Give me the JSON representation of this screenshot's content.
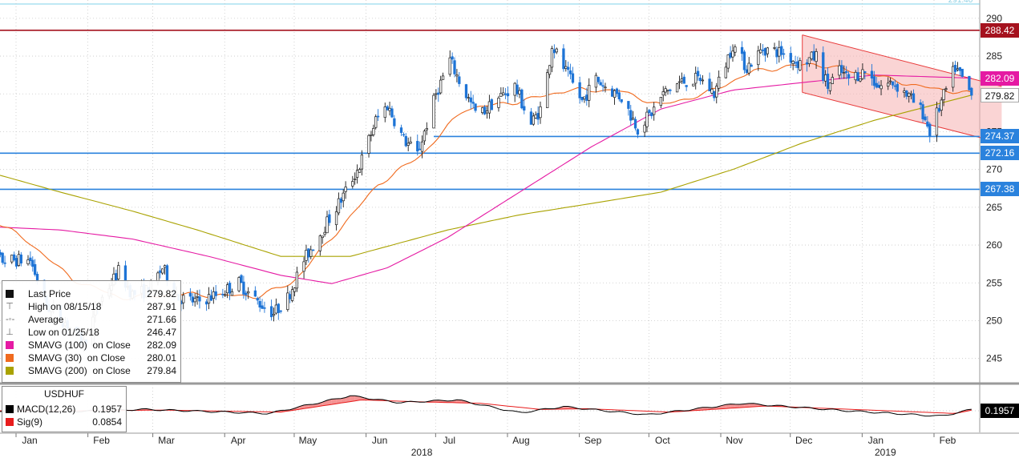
{
  "colors": {
    "background": "#ffffff",
    "candle": "#1e74d6",
    "sma30": "#f06a1e",
    "sma100": "#e51aa3",
    "sma200": "#a9a200",
    "resistance": "#a5121e",
    "support": "#2a82dd",
    "channel_fill": "#f5b0b0",
    "channel_line": "#e83a3a",
    "macd_line": "#000000",
    "signal_line": "#e81c1c",
    "macd_fill": "#f06f6f",
    "grid": "#c8c8c8",
    "tag_last": "#ffffff",
    "tag_sma100": "#e51aa3"
  },
  "chart_data": [
    {
      "type": "candlestick",
      "title": "",
      "x_labels": [
        "Jan",
        "Feb",
        "Mar",
        "Apr",
        "May",
        "Jun",
        "Jul",
        "Aug",
        "Sep",
        "Oct",
        "Nov",
        "Dec",
        "Jan",
        "Feb"
      ],
      "year_labels": [
        "2018",
        "2019"
      ],
      "y_ticks": [
        245,
        250,
        255,
        260,
        265,
        270,
        275,
        280,
        285,
        290
      ],
      "y_range": [
        242,
        292
      ],
      "grid": true,
      "scale_top_label": "291.40",
      "price_anchors": [
        {
          "date": "2017-12-11",
          "price": 262.0
        },
        {
          "date": "2017-12-20",
          "price": 258.0
        },
        {
          "date": "2018-01-02",
          "price": 258.0
        },
        {
          "date": "2018-01-09",
          "price": 252.0
        },
        {
          "date": "2018-01-17",
          "price": 249.8
        },
        {
          "date": "2018-01-25",
          "price": 247.0
        },
        {
          "date": "2018-02-01",
          "price": 252.5
        },
        {
          "date": "2018-02-09",
          "price": 256.5
        },
        {
          "date": "2018-02-15",
          "price": 253.5
        },
        {
          "date": "2018-02-22",
          "price": 254.0
        },
        {
          "date": "2018-02-28",
          "price": 257.0
        },
        {
          "date": "2018-03-07",
          "price": 253.0
        },
        {
          "date": "2018-03-15",
          "price": 252.5
        },
        {
          "date": "2018-03-24",
          "price": 253.5
        },
        {
          "date": "2018-04-02",
          "price": 255.0
        },
        {
          "date": "2018-04-10",
          "price": 252.5
        },
        {
          "date": "2018-04-17",
          "price": 251.0
        },
        {
          "date": "2018-04-23",
          "price": 253.0
        },
        {
          "date": "2018-04-30",
          "price": 258.0
        },
        {
          "date": "2018-05-08",
          "price": 262.0
        },
        {
          "date": "2018-05-16",
          "price": 266.0
        },
        {
          "date": "2018-05-24",
          "price": 270.5
        },
        {
          "date": "2018-05-31",
          "price": 276.5
        },
        {
          "date": "2018-06-05",
          "price": 278.5
        },
        {
          "date": "2018-06-12",
          "price": 274.0
        },
        {
          "date": "2018-06-18",
          "price": 272.0
        },
        {
          "date": "2018-06-26",
          "price": 280.0
        },
        {
          "date": "2018-07-02",
          "price": 284.5
        },
        {
          "date": "2018-07-07",
          "price": 281.0
        },
        {
          "date": "2018-07-14",
          "price": 277.0
        },
        {
          "date": "2018-07-23",
          "price": 279.5
        },
        {
          "date": "2018-07-30",
          "price": 281.0
        },
        {
          "date": "2018-08-06",
          "price": 276.0
        },
        {
          "date": "2018-08-11",
          "price": 278.5
        },
        {
          "date": "2018-08-15",
          "price": 286.5
        },
        {
          "date": "2018-08-20",
          "price": 283.5
        },
        {
          "date": "2018-08-28",
          "price": 279.0
        },
        {
          "date": "2018-09-03",
          "price": 282.0
        },
        {
          "date": "2018-09-07",
          "price": 281.0
        },
        {
          "date": "2018-09-14",
          "price": 279.5
        },
        {
          "date": "2018-09-21",
          "price": 275.5
        },
        {
          "date": "2018-09-27",
          "price": 277.5
        },
        {
          "date": "2018-10-02",
          "price": 280.0
        },
        {
          "date": "2018-10-09",
          "price": 281.5
        },
        {
          "date": "2018-10-18",
          "price": 282.0
        },
        {
          "date": "2018-10-24",
          "price": 280.0
        },
        {
          "date": "2018-11-01",
          "price": 286.5
        },
        {
          "date": "2018-11-07",
          "price": 283.5
        },
        {
          "date": "2018-11-14",
          "price": 286.0
        },
        {
          "date": "2018-11-22",
          "price": 285.5
        },
        {
          "date": "2018-11-30",
          "price": 284.0
        },
        {
          "date": "2018-12-07",
          "price": 285.0
        },
        {
          "date": "2018-12-12",
          "price": 281.0
        },
        {
          "date": "2018-12-17",
          "price": 283.0
        },
        {
          "date": "2018-12-21",
          "price": 282.0
        },
        {
          "date": "2018-12-28",
          "price": 283.0
        },
        {
          "date": "2019-01-03",
          "price": 281.0
        },
        {
          "date": "2019-01-09",
          "price": 281.5
        },
        {
          "date": "2019-01-15",
          "price": 280.0
        },
        {
          "date": "2019-01-22",
          "price": 277.5
        },
        {
          "date": "2019-01-25",
          "price": 275.0
        },
        {
          "date": "2019-02-01",
          "price": 280.5
        },
        {
          "date": "2019-02-05",
          "price": 283.5
        },
        {
          "date": "2019-02-08",
          "price": 282.0
        },
        {
          "date": "2019-02-12",
          "price": 279.82
        }
      ],
      "sma30": [
        {
          "date": "2017-12-11",
          "value": 264.5
        },
        {
          "date": "2018-01-01",
          "value": 260.5
        },
        {
          "date": "2018-01-20",
          "value": 255.5
        },
        {
          "date": "2018-02-10",
          "value": 253.0
        },
        {
          "date": "2018-03-10",
          "value": 253.5
        },
        {
          "date": "2018-04-10",
          "value": 253.2
        },
        {
          "date": "2018-04-25",
          "value": 255.0
        },
        {
          "date": "2018-05-15",
          "value": 262.0
        },
        {
          "date": "2018-06-01",
          "value": 268.0
        },
        {
          "date": "2018-06-20",
          "value": 272.0
        },
        {
          "date": "2018-07-08",
          "value": 278.0
        },
        {
          "date": "2018-08-01",
          "value": 279.0
        },
        {
          "date": "2018-08-22",
          "value": 280.5
        },
        {
          "date": "2018-09-12",
          "value": 280.5
        },
        {
          "date": "2018-10-01",
          "value": 278.5
        },
        {
          "date": "2018-10-20",
          "value": 280.0
        },
        {
          "date": "2018-11-10",
          "value": 283.0
        },
        {
          "date": "2018-12-05",
          "value": 284.0
        },
        {
          "date": "2019-01-01",
          "value": 282.5
        },
        {
          "date": "2019-01-20",
          "value": 281.0
        },
        {
          "date": "2019-02-12",
          "value": 280.01
        }
      ],
      "sma100": [
        {
          "date": "2017-12-11",
          "value": 262.5
        },
        {
          "date": "2018-01-15",
          "value": 262.0
        },
        {
          "date": "2018-02-15",
          "value": 260.8
        },
        {
          "date": "2018-03-20",
          "value": 258.5
        },
        {
          "date": "2018-04-20",
          "value": 256.0
        },
        {
          "date": "2018-05-12",
          "value": 254.9
        },
        {
          "date": "2018-06-05",
          "value": 257.0
        },
        {
          "date": "2018-07-01",
          "value": 261.0
        },
        {
          "date": "2018-08-01",
          "value": 267.0
        },
        {
          "date": "2018-09-01",
          "value": 273.0
        },
        {
          "date": "2018-10-01",
          "value": 278.0
        },
        {
          "date": "2018-11-01",
          "value": 280.5
        },
        {
          "date": "2018-12-01",
          "value": 281.5
        },
        {
          "date": "2019-01-01",
          "value": 282.5
        },
        {
          "date": "2019-02-12",
          "value": 282.09
        }
      ],
      "sma200": [
        {
          "date": "2017-12-11",
          "value": 270.0
        },
        {
          "date": "2018-01-15",
          "value": 267.0
        },
        {
          "date": "2018-02-15",
          "value": 264.5
        },
        {
          "date": "2018-03-15",
          "value": 262.0
        },
        {
          "date": "2018-04-20",
          "value": 258.5
        },
        {
          "date": "2018-05-20",
          "value": 258.5
        },
        {
          "date": "2018-07-01",
          "value": 262.0
        },
        {
          "date": "2018-08-01",
          "value": 264.0
        },
        {
          "date": "2018-09-01",
          "value": 265.5
        },
        {
          "date": "2018-10-01",
          "value": 267.0
        },
        {
          "date": "2018-11-01",
          "value": 270.0
        },
        {
          "date": "2018-12-01",
          "value": 273.5
        },
        {
          "date": "2019-01-01",
          "value": 276.5
        },
        {
          "date": "2019-02-12",
          "value": 279.84
        }
      ],
      "horizontal_lines": [
        {
          "value": 288.42,
          "kind": "resistance"
        },
        {
          "value": 274.37,
          "kind": "support"
        },
        {
          "value": 272.16,
          "kind": "support"
        },
        {
          "value": 267.38,
          "kind": "support"
        }
      ],
      "channel": {
        "start_date": "2018-12-01",
        "end_date": "2019-02-25",
        "upper": [
          287.8,
          281.0
        ],
        "lower": [
          280.2,
          273.5
        ]
      },
      "macd_panel": {
        "title": "USDHUF",
        "macd": [
          {
            "date": "2017-12-11",
            "value": 0.0
          },
          {
            "date": "2018-01-20",
            "value": -0.1
          },
          {
            "date": "2018-02-20",
            "value": 0.2
          },
          {
            "date": "2018-04-15",
            "value": -0.4
          },
          {
            "date": "2018-05-20",
            "value": 2.2
          },
          {
            "date": "2018-06-10",
            "value": 1.2
          },
          {
            "date": "2018-07-05",
            "value": 1.6
          },
          {
            "date": "2018-08-01",
            "value": -0.3
          },
          {
            "date": "2018-08-20",
            "value": 0.6
          },
          {
            "date": "2018-09-25",
            "value": -0.6
          },
          {
            "date": "2018-11-05",
            "value": 1.1
          },
          {
            "date": "2018-12-20",
            "value": 0.0
          },
          {
            "date": "2019-01-30",
            "value": -0.8
          },
          {
            "date": "2019-02-12",
            "value": 0.1957
          }
        ],
        "signal": [
          {
            "date": "2017-12-11",
            "value": 0.0
          },
          {
            "date": "2018-01-25",
            "value": 0.0
          },
          {
            "date": "2018-03-01",
            "value": 0.1
          },
          {
            "date": "2018-04-20",
            "value": -0.2
          },
          {
            "date": "2018-05-25",
            "value": 1.6
          },
          {
            "date": "2018-06-20",
            "value": 1.3
          },
          {
            "date": "2018-07-15",
            "value": 1.1
          },
          {
            "date": "2018-08-10",
            "value": 0.2
          },
          {
            "date": "2018-08-30",
            "value": 0.3
          },
          {
            "date": "2018-10-05",
            "value": -0.2
          },
          {
            "date": "2018-11-15",
            "value": 0.7
          },
          {
            "date": "2018-12-30",
            "value": 0.1
          },
          {
            "date": "2019-02-05",
            "value": -0.4
          },
          {
            "date": "2019-02-12",
            "value": 0.0854
          }
        ],
        "last_value_tag": "0.1957"
      }
    }
  ],
  "price_tags": [
    {
      "value": "288.42",
      "price": 288.42,
      "color": "#a5121e"
    },
    {
      "value": "282.09",
      "price": 282.09,
      "color": "#e51aa3"
    },
    {
      "value": "279.82",
      "price": 279.82,
      "color": "#ffffff"
    },
    {
      "value": "274.37",
      "price": 274.37,
      "color": "#2a82dd"
    },
    {
      "value": "272.16",
      "price": 272.16,
      "color": "#2a82dd"
    },
    {
      "value": "267.38",
      "price": 267.38,
      "color": "#2a82dd"
    }
  ],
  "legend": {
    "rows": [
      {
        "symbol": "square",
        "color": "#111111",
        "label": "Last Price",
        "value": "279.82"
      },
      {
        "symbol": "glyph",
        "glyph": "⊤",
        "label": "High on 08/15/18",
        "value": "287.91"
      },
      {
        "symbol": "glyph",
        "glyph": "-◦-",
        "label": "Average",
        "value": "271.66"
      },
      {
        "symbol": "glyph",
        "glyph": "⊥",
        "label": "Low on 01/25/18",
        "value": "246.47"
      },
      {
        "symbol": "square",
        "color": "#e51aa3",
        "label": "SMAVG (100)  on Close",
        "value": "282.09"
      },
      {
        "symbol": "square",
        "color": "#f06a1e",
        "label": "SMAVG (30)  on Close",
        "value": "280.01"
      },
      {
        "symbol": "square",
        "color": "#a9a200",
        "label": "SMAVG (200)  on Close",
        "value": "279.84"
      }
    ]
  },
  "macd_legend": {
    "title": "USDHUF",
    "rows": [
      {
        "color": "#000000",
        "label": "MACD(12,26)",
        "value": "0.1957"
      },
      {
        "color": "#e81c1c",
        "label": "Sig(9)",
        "value": "0.0854"
      }
    ]
  }
}
